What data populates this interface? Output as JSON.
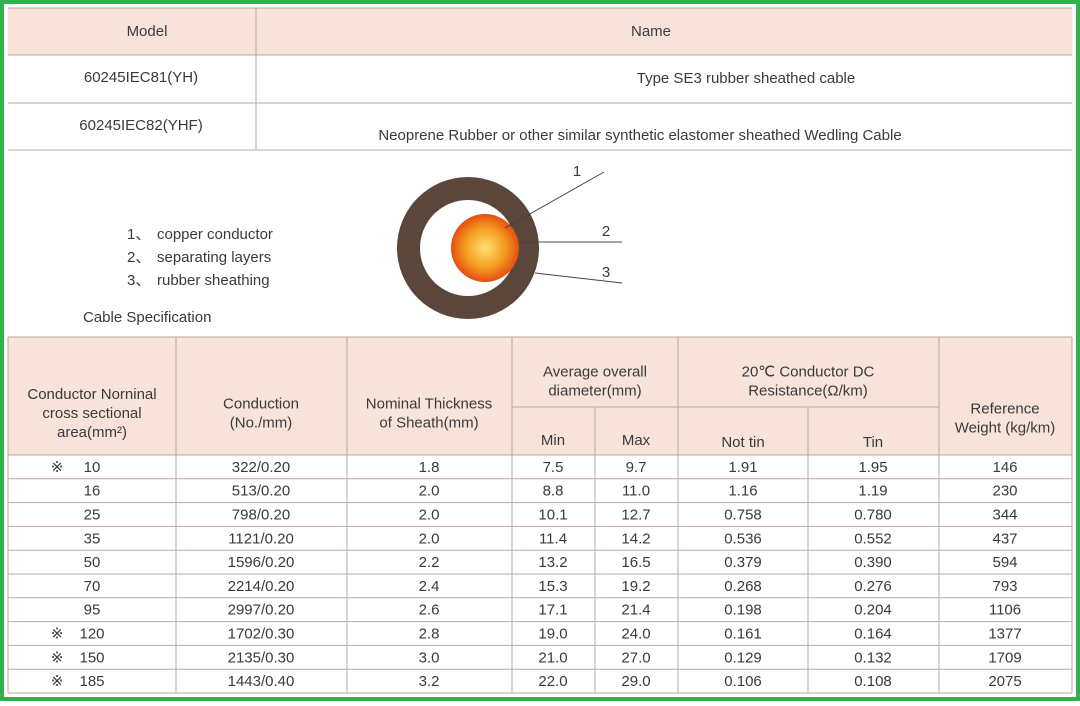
{
  "model_table": {
    "headers": [
      "Model",
      "Name"
    ],
    "rows": [
      [
        "60245IEC81(YH)",
        "Type SE3 rubber sheathed cable"
      ],
      [
        "60245IEC82(YHF)",
        "Neoprene Rubber or other similar synthetic elastomer sheathed Wedling Cable"
      ]
    ]
  },
  "legend": [
    {
      "num": "1、",
      "text": "copper conductor"
    },
    {
      "num": "2、",
      "text": "separating layers"
    },
    {
      "num": "3、",
      "text": "rubber sheathing"
    }
  ],
  "diagram_labels": [
    "1",
    "2",
    "3"
  ],
  "spec_title": "Cable Specification",
  "spec_table": {
    "headers": {
      "area": [
        "Conductor Norninal",
        "cross sectional",
        "area(mm²)"
      ],
      "conduction": [
        "Conduction",
        "(No./mm)"
      ],
      "thickness": [
        "Nominal Thickness",
        "of Sheath(mm)"
      ],
      "diameter": [
        "Average overall",
        "diameter(mm)"
      ],
      "min": "Min",
      "max": "Max",
      "resistance": [
        "20℃ Conductor DC",
        "Resistance(Ω/km)"
      ],
      "not_tin": "Not tin",
      "tin": "Tin",
      "weight": [
        "Reference",
        "Weight (kg/km)"
      ]
    },
    "rows": [
      {
        "note": "※",
        "area": "10",
        "cells": [
          "322/0.20",
          "1.8",
          "7.5",
          "9.7",
          "1.91",
          "1.95",
          "146"
        ]
      },
      {
        "area": "16",
        "cells": [
          "513/0.20",
          "2.0",
          "8.8",
          "11.0",
          "1.16",
          "1.19",
          "230"
        ]
      },
      {
        "area": "25",
        "cells": [
          "798/0.20",
          "2.0",
          "10.1",
          "12.7",
          "0.758",
          "0.780",
          "344"
        ]
      },
      {
        "area": "35",
        "cells": [
          "1121/0.20",
          "2.0",
          "11.4",
          "14.2",
          "0.536",
          "0.552",
          "437"
        ]
      },
      {
        "area": "50",
        "cells": [
          "1596/0.20",
          "2.2",
          "13.2",
          "16.5",
          "0.379",
          "0.390",
          "594"
        ]
      },
      {
        "area": "70",
        "cells": [
          "2214/0.20",
          "2.4",
          "15.3",
          "19.2",
          "0.268",
          "0.276",
          "793"
        ]
      },
      {
        "area": "95",
        "cells": [
          "2997/0.20",
          "2.6",
          "17.1",
          "21.4",
          "0.198",
          "0.204",
          "1106"
        ]
      },
      {
        "note": "※",
        "area": "120",
        "cells": [
          "1702/0.30",
          "2.8",
          "19.0",
          "24.0",
          "0.161",
          "0.164",
          "1377"
        ]
      },
      {
        "note": "※",
        "area": "150",
        "cells": [
          "2135/0.30",
          "3.0",
          "21.0",
          "27.0",
          "0.129",
          "0.132",
          "1709"
        ]
      },
      {
        "note": "※",
        "area": "185",
        "cells": [
          "1443/0.40",
          "3.2",
          "22.0",
          "29.0",
          "0.106",
          "0.108",
          "2075"
        ]
      }
    ]
  }
}
